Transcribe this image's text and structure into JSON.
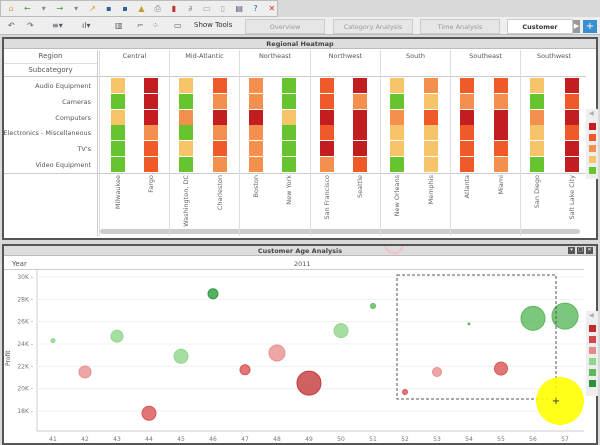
{
  "toolbar": {
    "row1_icons": [
      "home-icon",
      "back-icon",
      "back-dropdown-icon",
      "forward-icon",
      "forward-dropdown-icon",
      "export-icon",
      "save-icon",
      "save-as-icon",
      "chart-icon",
      "print-icon",
      "pdf-icon",
      "link-icon",
      "copy-icon",
      "document-icon",
      "refresh-icon",
      "help-icon",
      "close-icon"
    ],
    "row2_icons": [
      "undo-icon",
      "redo-icon",
      "list-dropdown-icon",
      "chart-type-dropdown-icon",
      "grid-delete-icon",
      "pivot-icon",
      "swap-icon",
      "monitor-icon"
    ],
    "show_tools": "Show Tools"
  },
  "tabs": [
    {
      "label": "Overview"
    },
    {
      "label": "Category Analysis"
    },
    {
      "label": "Time Analysis"
    },
    {
      "label": "Customer Analy..."
    }
  ],
  "heatmap": {
    "title": "Regional Heatmap",
    "region_header": "Region",
    "subcategory_header": "Subcategory",
    "regions": [
      "Central",
      "Mid-Atlantic",
      "Northeast",
      "Northwest",
      "South",
      "Southeast",
      "Southwest"
    ],
    "cities": [
      "Milwaukee",
      "Fargo",
      "Washington, DC",
      "Charleston",
      "Boston",
      "New York",
      "San Francisco",
      "Seattle",
      "New Orleans",
      "Memphis",
      "Atlanta",
      "Miami",
      "San Diego",
      "Salt Lake City"
    ],
    "subcategories": [
      "Audio Equipment",
      "Cameras",
      "Computers",
      "Electronics - Miscellaneous",
      "TV's",
      "Video Equipment"
    ],
    "levels": [
      [
        2,
        5,
        2,
        4,
        3,
        1,
        4,
        5,
        2,
        3,
        4,
        4,
        2,
        5
      ],
      [
        1,
        5,
        1,
        3,
        3,
        1,
        4,
        3,
        1,
        2,
        3,
        3,
        1,
        4
      ],
      [
        2,
        5,
        3,
        5,
        5,
        2,
        5,
        5,
        3,
        4,
        5,
        5,
        3,
        5
      ],
      [
        1,
        3,
        1,
        3,
        3,
        1,
        4,
        5,
        2,
        2,
        4,
        5,
        2,
        4
      ],
      [
        1,
        4,
        2,
        4,
        3,
        1,
        5,
        5,
        2,
        2,
        4,
        4,
        2,
        5
      ],
      [
        1,
        4,
        1,
        3,
        3,
        1,
        3,
        4,
        1,
        2,
        4,
        3,
        1,
        5
      ]
    ],
    "level_colors": [
      "#66c42f",
      "#f7c46a",
      "#f4904e",
      "#f05a28",
      "#c21e22"
    ],
    "legend_colors": [
      "#c21e22",
      "#f05a28",
      "#f4904e",
      "#f7c46a",
      "#66c42f"
    ]
  },
  "bubble": {
    "title": "Customer Age Analysis",
    "year_header": "Year",
    "year": "2011",
    "chart_data": {
      "type": "scatter",
      "ylabel": "Profit",
      "xlabel": "",
      "x_ticks": [
        "41",
        "42",
        "43",
        "44",
        "45",
        "46",
        "47",
        "48",
        "49",
        "50",
        "51",
        "52",
        "53",
        "54",
        "55",
        "56",
        "57"
      ],
      "y_ticks": [
        "18K",
        "20K",
        "22K",
        "24K",
        "26K",
        "28K",
        "30K"
      ],
      "ylim": [
        16000,
        30500
      ],
      "points": [
        {
          "x": 41,
          "y": 24300,
          "size": 2,
          "level": 4
        },
        {
          "x": 42,
          "y": 21500,
          "size": 6,
          "level": 3
        },
        {
          "x": 43,
          "y": 24700,
          "size": 6,
          "level": 4
        },
        {
          "x": 44,
          "y": 17800,
          "size": 7,
          "level": 2
        },
        {
          "x": 45,
          "y": 22900,
          "size": 7,
          "level": 4
        },
        {
          "x": 46,
          "y": 28500,
          "size": 5,
          "level": 6
        },
        {
          "x": 47,
          "y": 21700,
          "size": 5,
          "level": 2
        },
        {
          "x": 48,
          "y": 23200,
          "size": 8,
          "level": 3
        },
        {
          "x": 49,
          "y": 20500,
          "size": 12,
          "level": 1
        },
        {
          "x": 50,
          "y": 25200,
          "size": 7,
          "level": 4
        },
        {
          "x": 51,
          "y": 27400,
          "size": 2.5,
          "level": 5
        },
        {
          "x": 52,
          "y": 19700,
          "size": 2.5,
          "level": 2
        },
        {
          "x": 53,
          "y": 21500,
          "size": 4.5,
          "level": 3
        },
        {
          "x": 54,
          "y": 25800,
          "size": 1,
          "level": 5
        },
        {
          "x": 55,
          "y": 21800,
          "size": 6.5,
          "level": 2
        },
        {
          "x": 56,
          "y": 26300,
          "size": 12,
          "level": 5
        },
        {
          "x": 57,
          "y": 26500,
          "size": 13,
          "level": 5
        }
      ],
      "level_colors": [
        "#c43a3a",
        "#d95454",
        "#e99090",
        "#8fd68c",
        "#5cb85c",
        "#2e9a3a"
      ],
      "grid": true
    },
    "legend_colors": [
      "#c02a2a",
      "#d24848",
      "#e38a8a",
      "#8fd68c",
      "#5cb85c",
      "#2e8f36"
    ]
  }
}
